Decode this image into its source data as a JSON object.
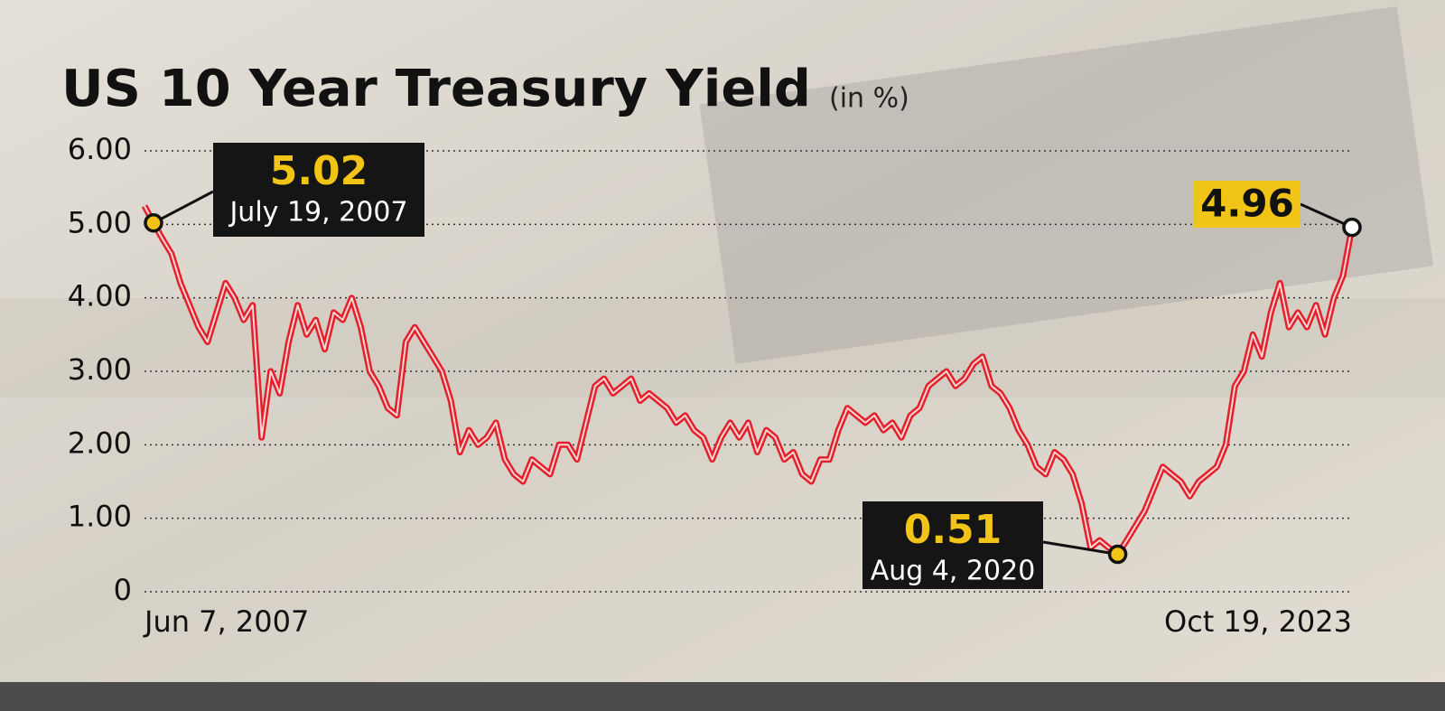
{
  "chart_data": {
    "type": "line",
    "title": "US 10 Year Treasury Yield",
    "subtitle": "(in %)",
    "categories": [
      "Jun 7, 2007",
      null,
      null,
      null,
      null,
      null,
      null,
      null,
      null,
      null,
      null,
      null,
      null,
      null,
      null,
      null,
      null,
      null,
      null,
      null,
      null,
      null,
      null,
      null,
      null,
      null,
      null,
      null,
      null,
      null,
      null,
      null,
      null,
      null,
      null,
      null,
      null,
      null,
      null,
      null,
      null,
      null,
      null,
      null,
      null,
      null,
      null,
      null,
      null,
      null,
      null,
      null,
      null,
      null,
      null,
      null,
      null,
      null,
      null,
      null,
      null,
      null,
      null,
      null,
      null,
      null,
      null,
      null,
      null,
      null,
      null,
      null,
      null,
      null,
      null,
      null,
      null,
      null,
      null,
      null,
      null,
      null,
      null,
      null,
      null,
      null,
      null,
      null,
      null,
      null,
      null,
      null,
      null,
      null,
      null,
      null,
      null,
      null,
      null,
      null,
      null,
      null,
      null,
      null,
      null,
      null,
      null,
      null,
      null,
      null,
      null,
      null,
      null,
      null,
      null,
      null,
      null,
      null,
      null,
      null,
      null,
      null,
      null,
      null,
      null,
      null,
      null,
      null,
      null,
      null,
      null,
      null,
      null,
      null,
      "Oct 19, 2023"
    ],
    "values": [
      5.25,
      5.02,
      4.8,
      4.6,
      4.2,
      3.9,
      3.6,
      3.4,
      3.8,
      4.2,
      4.0,
      3.7,
      3.9,
      2.1,
      3.0,
      2.7,
      3.4,
      3.9,
      3.5,
      3.7,
      3.3,
      3.8,
      3.7,
      4.0,
      3.6,
      3.0,
      2.8,
      2.5,
      2.4,
      3.4,
      3.6,
      3.4,
      3.2,
      3.0,
      2.6,
      1.9,
      2.2,
      2.0,
      2.1,
      2.3,
      1.8,
      1.6,
      1.5,
      1.8,
      1.7,
      1.6,
      2.0,
      2.0,
      1.8,
      2.3,
      2.8,
      2.9,
      2.7,
      2.8,
      2.9,
      2.6,
      2.7,
      2.6,
      2.5,
      2.3,
      2.4,
      2.2,
      2.1,
      1.8,
      2.1,
      2.3,
      2.1,
      2.3,
      1.9,
      2.2,
      2.1,
      1.8,
      1.9,
      1.6,
      1.5,
      1.8,
      1.8,
      2.2,
      2.5,
      2.4,
      2.3,
      2.4,
      2.2,
      2.3,
      2.1,
      2.4,
      2.5,
      2.8,
      2.9,
      3.0,
      2.8,
      2.9,
      3.1,
      3.2,
      2.8,
      2.7,
      2.5,
      2.2,
      2.0,
      1.7,
      1.6,
      1.9,
      1.8,
      1.6,
      1.2,
      0.6,
      0.7,
      0.6,
      0.51,
      0.7,
      0.9,
      1.1,
      1.4,
      1.7,
      1.6,
      1.5,
      1.3,
      1.5,
      1.6,
      1.7,
      2.0,
      2.8,
      3.0,
      3.5,
      3.2,
      3.8,
      4.2,
      3.6,
      3.8,
      3.6,
      3.9,
      3.5,
      4.0,
      4.3,
      4.96
    ],
    "color": "#e3202b",
    "ylim": [
      0,
      6
    ],
    "yticks": [
      0,
      {
        "value": 1,
        "label": "1.00"
      },
      {
        "value": 2,
        "label": "2.00"
      },
      {
        "value": 3,
        "label": "3.00"
      },
      {
        "value": 4,
        "label": "4.00"
      },
      {
        "value": 5,
        "label": "5.00"
      },
      {
        "value": 6,
        "label": "6.00"
      }
    ],
    "grid": true,
    "annotations": [
      {
        "value": 5.02,
        "label": "July 19, 2007"
      },
      {
        "value": 0.51,
        "label": "Aug 4, 2020"
      },
      {
        "value": 4.96
      }
    ]
  }
}
